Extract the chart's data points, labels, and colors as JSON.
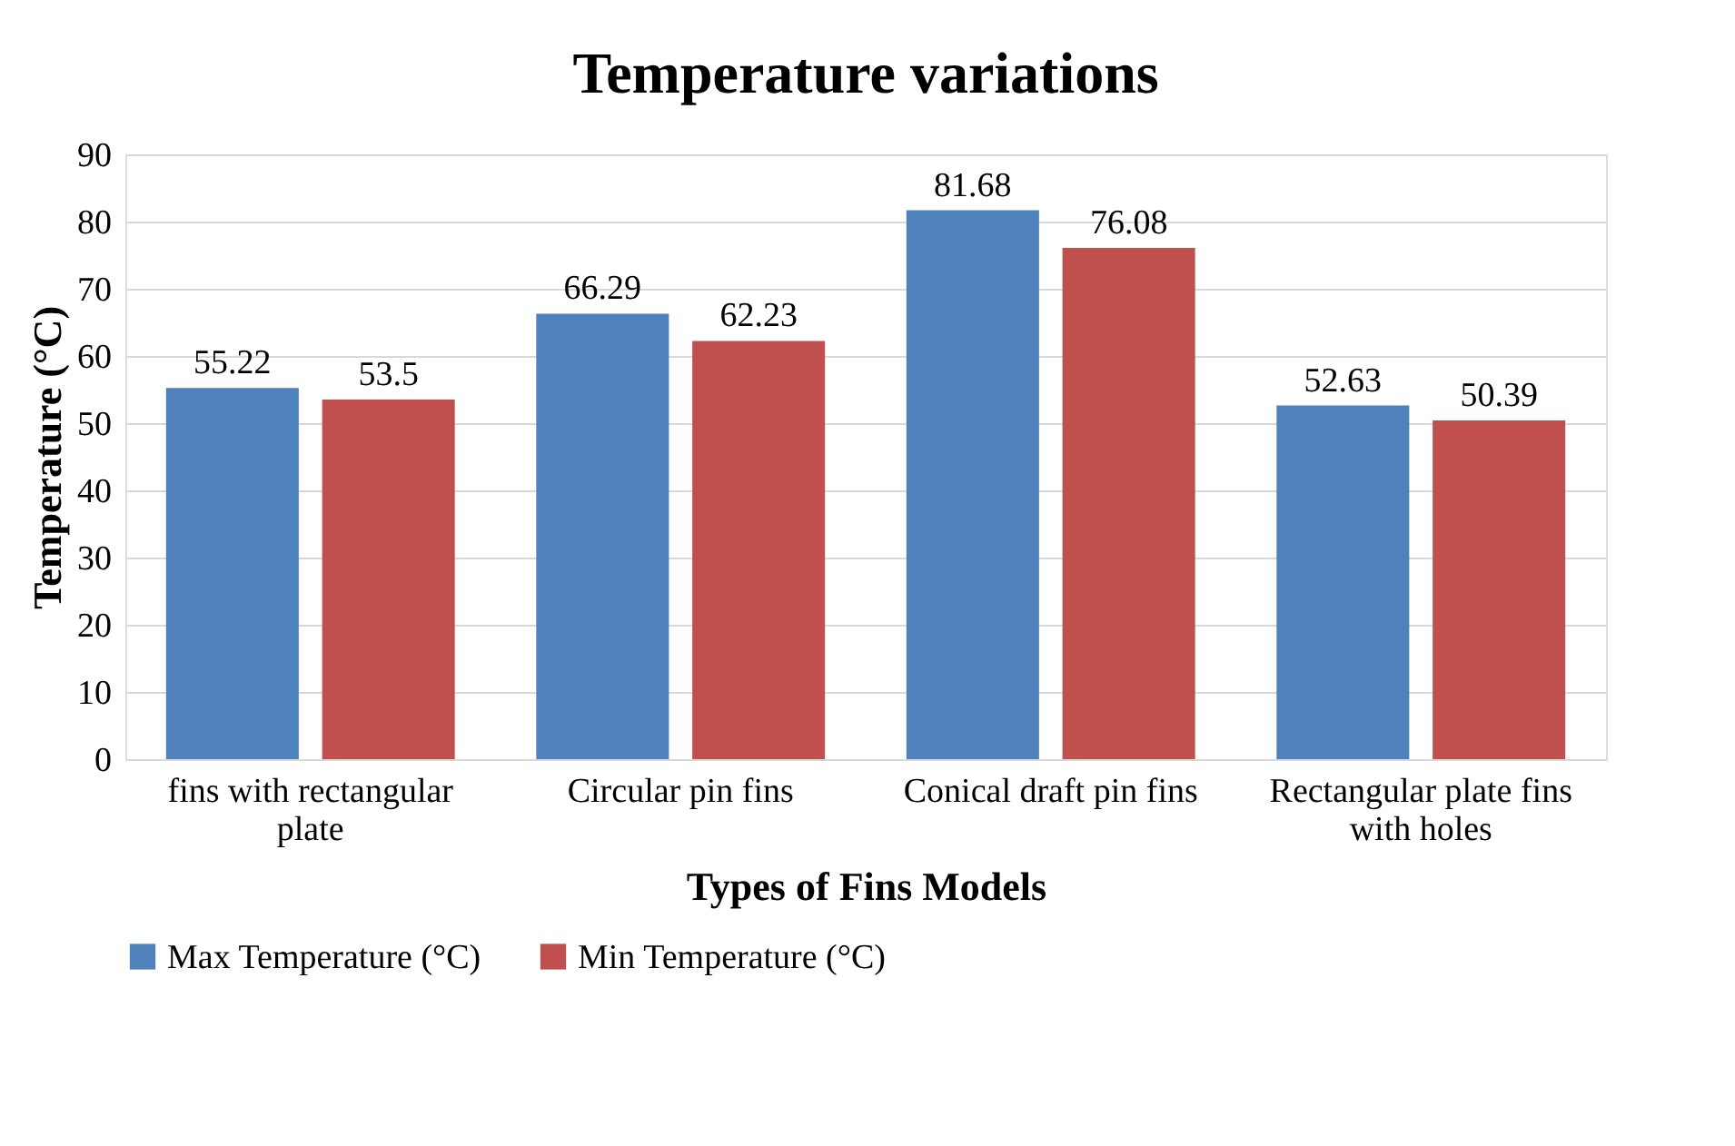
{
  "chart_data": {
    "type": "bar",
    "title": "Temperature variations",
    "xlabel": "Types of Fins Models",
    "ylabel": "Temperature (°C)",
    "categories": [
      "fins with rectangular plate",
      "Circular pin fins",
      "Conical draft pin fins",
      "Rectangular plate fins with holes"
    ],
    "series": [
      {
        "name": "Max Temperature (°C)",
        "color": "#4f81bd",
        "values": [
          55.22,
          66.29,
          81.68,
          52.63
        ]
      },
      {
        "name": "Min Temperature (°C)",
        "color": "#c0504d",
        "values": [
          53.5,
          62.23,
          76.08,
          50.39
        ]
      }
    ],
    "ylim": [
      0,
      90
    ],
    "yticks": [
      0,
      10,
      20,
      30,
      40,
      50,
      60,
      70,
      80,
      90
    ],
    "grid": "y",
    "legend": "bottom",
    "data_labels": true
  }
}
